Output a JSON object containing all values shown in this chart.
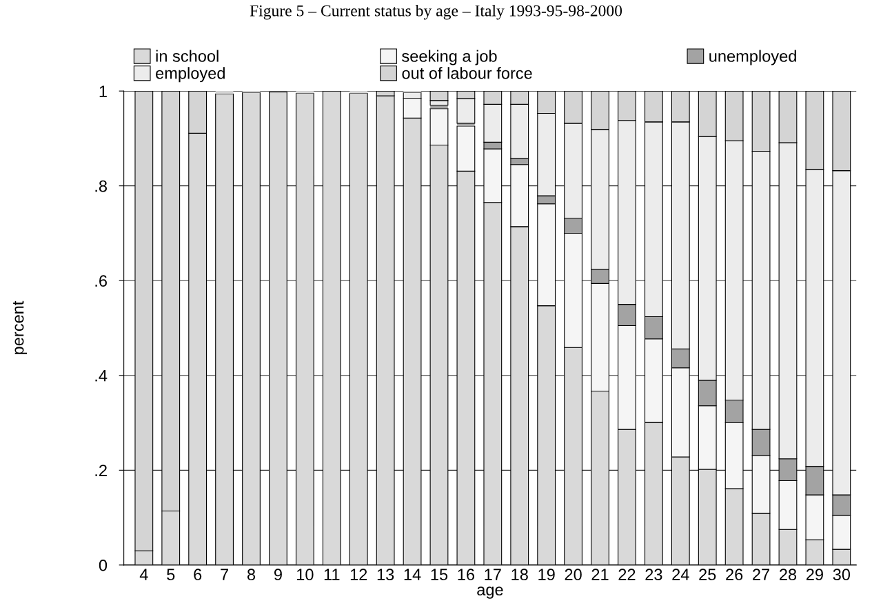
{
  "chart_data": {
    "type": "bar",
    "stacked": true,
    "title": "Figure 5 – Current status by age – Italy 1993-95-98-2000",
    "xlabel": "age",
    "ylabel": "percent",
    "categories": [
      "4",
      "5",
      "6",
      "7",
      "8",
      "9",
      "10",
      "11",
      "12",
      "13",
      "14",
      "15",
      "16",
      "17",
      "18",
      "19",
      "20",
      "21",
      "22",
      "23",
      "24",
      "25",
      "26",
      "27",
      "28",
      "29",
      "30"
    ],
    "series": [
      {
        "name": "in school",
        "color": "#d9d9d9",
        "values": [
          0.03,
          0.114,
          0.911,
          0.994,
          0.997,
          0.998,
          0.995,
          1.0,
          0.995,
          0.99,
          0.943,
          0.886,
          0.831,
          0.765,
          0.714,
          0.547,
          0.459,
          0.367,
          0.286,
          0.301,
          0.228,
          0.202,
          0.161,
          0.109,
          0.075,
          0.053,
          0.033
        ]
      },
      {
        "name": "seeking a job",
        "color": "#f5f5f5",
        "values": [
          0,
          0,
          0,
          0,
          0,
          0,
          0,
          0,
          0,
          0,
          0.042,
          0.077,
          0.095,
          0.113,
          0.131,
          0.215,
          0.241,
          0.227,
          0.219,
          0.176,
          0.188,
          0.134,
          0.139,
          0.122,
          0.103,
          0.095,
          0.072
        ]
      },
      {
        "name": "unemployed",
        "color": "#a3a3a3",
        "values": [
          0,
          0,
          0,
          0,
          0,
          0,
          0,
          0,
          0,
          0,
          0,
          0.007,
          0.006,
          0.014,
          0.013,
          0.017,
          0.032,
          0.03,
          0.045,
          0.047,
          0.04,
          0.054,
          0.048,
          0.055,
          0.046,
          0.06,
          0.043
        ]
      },
      {
        "name": "employed",
        "color": "#ececec",
        "values": [
          0,
          0,
          0,
          0,
          0,
          0,
          0,
          0,
          0,
          0,
          0.012,
          0.01,
          0.052,
          0.08,
          0.114,
          0.174,
          0.2,
          0.295,
          0.388,
          0.411,
          0.479,
          0.514,
          0.547,
          0.587,
          0.667,
          0.627,
          0.684
        ]
      },
      {
        "name": "out of labour force",
        "color": "#d4d4d4",
        "values": [
          0.97,
          0.886,
          0.089,
          0.006,
          0.003,
          null,
          0.005,
          0,
          0.005,
          0.01,
          0.003,
          0.02,
          0.016,
          0.028,
          0.028,
          0.047,
          0.068,
          0.081,
          0.062,
          0.065,
          0.065,
          0.096,
          0.105,
          0.127,
          0.109,
          0.165,
          0.168
        ]
      }
    ],
    "ylim": [
      0,
      1
    ],
    "yticks": [
      {
        "value": 0,
        "label": "0"
      },
      {
        "value": 0.2,
        "label": ".2"
      },
      {
        "value": 0.4,
        "label": ".4"
      },
      {
        "value": 0.6,
        "label": ".6"
      },
      {
        "value": 0.8,
        "label": ".8"
      },
      {
        "value": 1,
        "label": "1"
      }
    ],
    "grid": "y",
    "legend": "top"
  }
}
